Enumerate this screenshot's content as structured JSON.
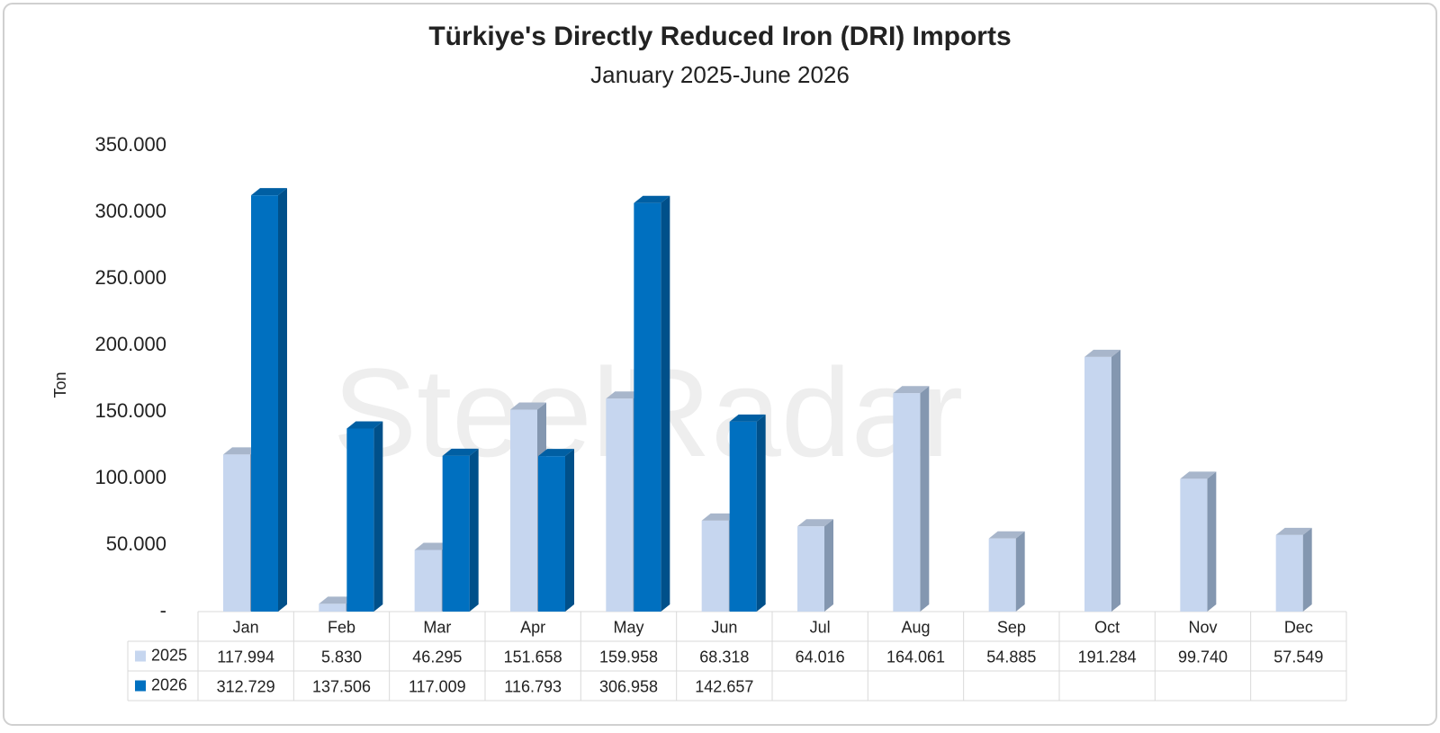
{
  "chart_data": {
    "type": "bar3d",
    "title": "Türkiye's Directly Reduced Iron (DRI) Imports",
    "subtitle": "January 2025-June 2026",
    "y_label": "Ton",
    "watermark": "SteelRadar",
    "categories": [
      "Jan",
      "Feb",
      "Mar",
      "Apr",
      "May",
      "Jun",
      "Jul",
      "Aug",
      "Sep",
      "Oct",
      "Nov",
      "Dec"
    ],
    "series": [
      {
        "name": "2025",
        "color": "#c6d6ef",
        "values": [
          117994,
          5830,
          46295,
          151658,
          159958,
          68318,
          64016,
          164061,
          54885,
          191284,
          99740,
          57549
        ],
        "value_labels": [
          "117.994",
          "5.830",
          "46.295",
          "151.658",
          "159.958",
          "68.318",
          "64.016",
          "164.061",
          "54.885",
          "191.284",
          "99.740",
          "57.549"
        ]
      },
      {
        "name": "2026",
        "color": "#0070c0",
        "values": [
          312729,
          137506,
          117009,
          116793,
          306958,
          142657,
          null,
          null,
          null,
          null,
          null,
          null
        ],
        "value_labels": [
          "312.729",
          "137.506",
          "117.009",
          "116.793",
          "306.958",
          "142.657",
          null,
          null,
          null,
          null,
          null,
          null
        ]
      }
    ],
    "ylim": [
      0,
      350000
    ],
    "yticks": [
      {
        "value": 0,
        "label": "-"
      },
      {
        "value": 50000,
        "label": "50.000"
      },
      {
        "value": 100000,
        "label": "100.000"
      },
      {
        "value": 150000,
        "label": "150.000"
      },
      {
        "value": 200000,
        "label": "200.000"
      },
      {
        "value": 250000,
        "label": "250.000"
      },
      {
        "value": 300000,
        "label": "300.000"
      },
      {
        "value": 350000,
        "label": "350.000"
      }
    ],
    "grid": false,
    "data_table": true
  }
}
